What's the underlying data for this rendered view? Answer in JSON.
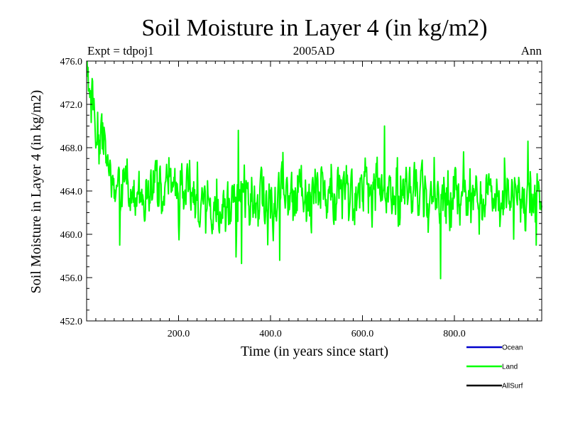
{
  "chart_data": {
    "type": "line",
    "title": "Soil Moisture in Layer 4 (in kg/m2)",
    "subtitle_left": "Expt = tdpoj1",
    "subtitle_center": "2005AD",
    "subtitle_right": "Ann",
    "xlabel": "Time (in years since start)",
    "ylabel": "Soil Moisture in Layer 4 (in kg/m2)",
    "xlim": [
      0,
      990
    ],
    "ylim": [
      452.0,
      476.0
    ],
    "x_ticks": [
      {
        "value": 200,
        "label": "200.0"
      },
      {
        "value": 400,
        "label": "400.0"
      },
      {
        "value": 600,
        "label": "600.0"
      },
      {
        "value": 800,
        "label": "800.0"
      }
    ],
    "y_ticks": [
      {
        "value": 452,
        "label": "452.0"
      },
      {
        "value": 456,
        "label": "456.0"
      },
      {
        "value": 460,
        "label": "460.0"
      },
      {
        "value": 464,
        "label": "464.0"
      },
      {
        "value": 468,
        "label": "468.0"
      },
      {
        "value": 472,
        "label": "472.0"
      },
      {
        "value": 476,
        "label": "476.0"
      }
    ],
    "legend": [
      {
        "name": "Ocean",
        "color": "#0000cc"
      },
      {
        "name": "Land",
        "color": "#00ff00"
      },
      {
        "name": "AllSurf",
        "color": "#000000"
      }
    ],
    "series": [
      {
        "name": "Land",
        "color": "#00ff00",
        "x_start": 1,
        "x_step": 1,
        "seed": 2005,
        "anchors": [
          [
            1,
            474.5
          ],
          [
            5,
            473.5
          ],
          [
            10,
            472.0
          ],
          [
            20,
            469.0
          ],
          [
            35,
            467.5
          ],
          [
            50,
            466.0
          ],
          [
            70,
            464.5
          ],
          [
            100,
            463.8
          ],
          [
            150,
            463.9
          ],
          [
            200,
            463.8
          ],
          [
            250,
            463.5
          ],
          [
            300,
            463.2
          ],
          [
            350,
            463.4
          ],
          [
            400,
            463.6
          ],
          [
            450,
            463.8
          ],
          [
            500,
            464.0
          ],
          [
            550,
            464.0
          ],
          [
            600,
            464.1
          ],
          [
            650,
            464.3
          ],
          [
            700,
            464.0
          ],
          [
            750,
            463.6
          ],
          [
            800,
            463.5
          ],
          [
            850,
            463.6
          ],
          [
            900,
            463.6
          ],
          [
            950,
            463.8
          ],
          [
            990,
            463.6
          ]
        ],
        "noise_sd": 1.5,
        "ar_coef": 0.55,
        "extremes": [
          {
            "x": 2,
            "y": 474.6
          },
          {
            "x": 72,
            "y": 459.0
          },
          {
            "x": 330,
            "y": 469.6
          },
          {
            "x": 337,
            "y": 457.3
          },
          {
            "x": 420,
            "y": 457.6
          },
          {
            "x": 648,
            "y": 470.0
          },
          {
            "x": 770,
            "y": 455.9
          },
          {
            "x": 960,
            "y": 468.6
          },
          {
            "x": 978,
            "y": 459.0
          }
        ]
      }
    ]
  }
}
